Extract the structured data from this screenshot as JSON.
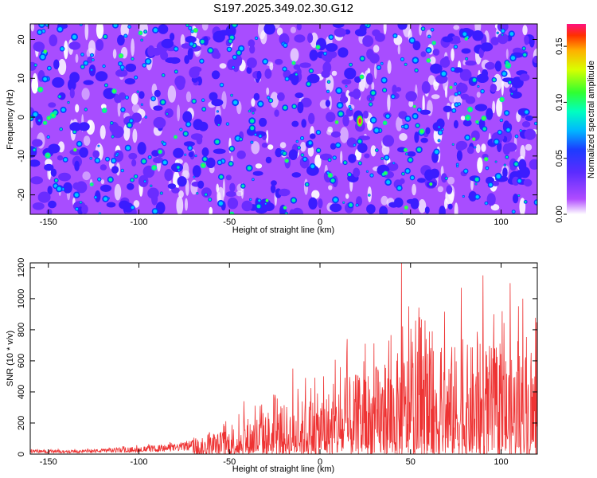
{
  "title": "S197.2025.349.02.30.G12",
  "chart_data": [
    {
      "type": "heatmap",
      "name": "spectrogram",
      "xlabel": "Height of straight line (km)",
      "ylabel": "Frequency (Hz)",
      "xlim": [
        -160,
        120
      ],
      "ylim": [
        -25,
        24
      ],
      "xticks": [
        -150,
        -100,
        -50,
        0,
        50,
        100
      ],
      "yticks": [
        -20,
        -10,
        0,
        10,
        20
      ],
      "colorbar": {
        "label": "Normalized spectral amplitude",
        "range": [
          0,
          0.17
        ],
        "ticks": [
          "0.00",
          "0.05",
          "0.10",
          "0.15"
        ],
        "tick_values": [
          0,
          0.05,
          0.1,
          0.15
        ]
      },
      "peak": {
        "x": 22,
        "y": -1,
        "value": 0.17
      },
      "background_color": "#a84dff"
    },
    {
      "type": "line",
      "name": "snr-trace",
      "xlabel": "Height of straight line (km)",
      "ylabel": "SNR (10 * v/v)",
      "xlim": [
        -160,
        120
      ],
      "ylim": [
        0,
        1230
      ],
      "xticks": [
        -150,
        -100,
        -50,
        0,
        50,
        100
      ],
      "yticks": [
        0,
        200,
        400,
        600,
        800,
        1000,
        1200
      ],
      "line_color": "#ee3333",
      "envelope_x": [
        -160,
        -140,
        -120,
        -100,
        -80,
        -70,
        -60,
        -50,
        -40,
        -30,
        -20,
        -10,
        0,
        10,
        20,
        30,
        40,
        50,
        60,
        70,
        80,
        90,
        100,
        110,
        120
      ],
      "envelope_y": [
        25,
        20,
        28,
        40,
        55,
        80,
        110,
        160,
        220,
        260,
        290,
        320,
        360,
        420,
        470,
        520,
        580,
        640,
        620,
        650,
        640,
        660,
        620,
        640,
        600
      ],
      "peaks": [
        {
          "x": -61,
          "y": 140
        },
        {
          "x": -42,
          "y": 340
        },
        {
          "x": -33,
          "y": 310
        },
        {
          "x": -15,
          "y": 550
        },
        {
          "x": -8,
          "y": 490
        },
        {
          "x": 2,
          "y": 500
        },
        {
          "x": 15,
          "y": 740
        },
        {
          "x": 25,
          "y": 710
        },
        {
          "x": 38,
          "y": 730
        },
        {
          "x": 45,
          "y": 1230
        },
        {
          "x": 55,
          "y": 880
        },
        {
          "x": 62,
          "y": 790
        },
        {
          "x": 78,
          "y": 1070
        },
        {
          "x": 90,
          "y": 1150
        },
        {
          "x": 96,
          "y": 900
        },
        {
          "x": 105,
          "y": 1100
        },
        {
          "x": 112,
          "y": 1000
        }
      ]
    }
  ]
}
